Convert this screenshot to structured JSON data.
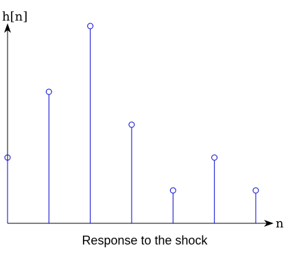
{
  "chart_data": {
    "type": "stem",
    "title": "Response to the shock",
    "ylabel": "h[n]",
    "xlabel": "n",
    "x": [
      0,
      1,
      2,
      3,
      4,
      5,
      6
    ],
    "values": [
      2,
      4,
      6,
      3,
      1,
      2,
      1
    ],
    "ylim": [
      0,
      6
    ],
    "grid": false,
    "stem_color": "#0000cc",
    "axis_color": "#000000"
  }
}
